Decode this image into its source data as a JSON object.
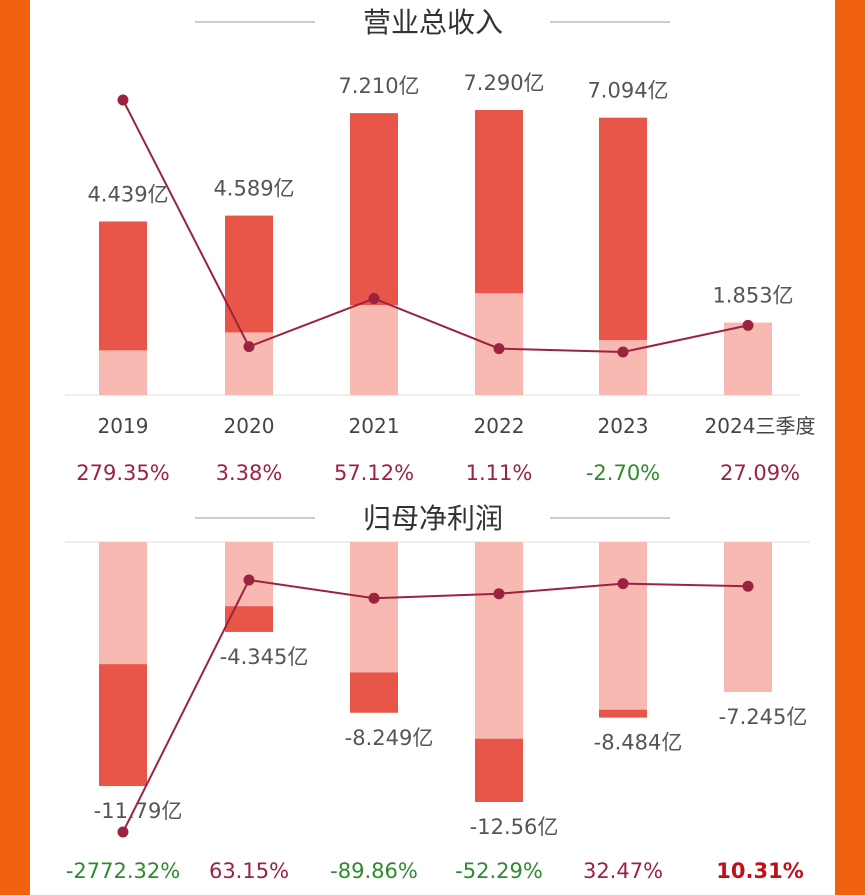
{
  "colors": {
    "background": "#f0620f",
    "bar_dark": "#e8564a",
    "bar_light": "#f7b9b2",
    "line": "#9b2340",
    "growth_positive": "#9b2340",
    "growth_negative": "#2e8b2e",
    "growth_highlight": "#c0101a"
  },
  "chart_data": [
    {
      "type": "bar",
      "title": "营业总收入",
      "categories": [
        "2019",
        "2020",
        "2021",
        "2022",
        "2023",
        "2024三季度"
      ],
      "values": [
        4.439,
        4.589,
        7.21,
        7.29,
        7.094,
        1.853
      ],
      "value_labels": [
        "4.439亿",
        "4.589亿",
        "7.210亿",
        "7.290亿",
        "7.094亿",
        "1.853亿"
      ],
      "light_segment": [
        1.14,
        1.6,
        2.3,
        2.6,
        1.4,
        1.853
      ],
      "growth_labels": [
        "279.35%",
        "3.38%",
        "57.12%",
        "1.11%",
        "-2.70%",
        "27.09%"
      ],
      "growth_values": [
        279.35,
        3.38,
        57.12,
        1.11,
        -2.7,
        27.09
      ],
      "unit": "亿",
      "ylim": [
        0,
        7.29
      ]
    },
    {
      "type": "bar",
      "title": "归母净利润",
      "categories": [
        "2019",
        "2020",
        "2021",
        "2022",
        "2023",
        "2024三季度"
      ],
      "values": [
        -11.79,
        -4.345,
        -8.249,
        -12.56,
        -8.484,
        -7.245
      ],
      "value_labels": [
        "-11.79亿",
        "-4.345亿",
        "-8.249亿",
        "-12.56亿",
        "-8.484亿",
        "-7.245亿"
      ],
      "light_segment": [
        -5.9,
        -3.1,
        -6.3,
        -9.5,
        -8.1,
        -7.245
      ],
      "growth_labels": [
        "-2772.32%",
        "63.15%",
        "-89.86%",
        "-52.29%",
        "32.47%",
        "10.31%"
      ],
      "growth_values": [
        -2772.32,
        63.15,
        -89.86,
        -52.29,
        32.47,
        10.31
      ],
      "unit": "亿",
      "ylim": [
        -12.56,
        0
      ]
    }
  ]
}
